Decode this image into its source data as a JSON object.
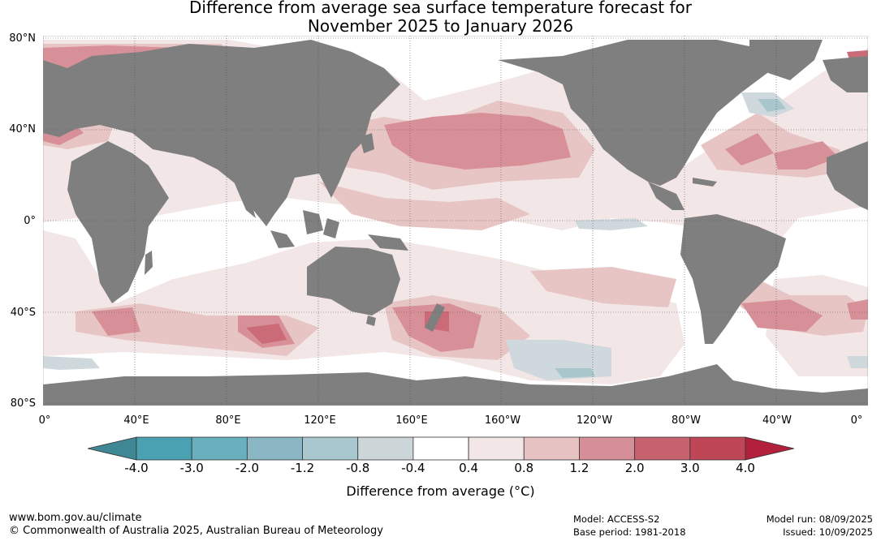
{
  "title": {
    "line1": "Difference from average sea surface temperature forecast for",
    "line2": "November 2025 to January 2026"
  },
  "map": {
    "lat_labels": [
      "80°N",
      "40°N",
      "0°",
      "40°S",
      "80°S"
    ],
    "lon_labels": [
      "0°",
      "40°E",
      "80°E",
      "120°E",
      "160°E",
      "160°W",
      "120°W",
      "80°W",
      "40°W",
      "0°"
    ],
    "colors": {
      "land": "#7f7f7f",
      "ocean_neutral": "#ffffff",
      "anom_0_4_0_8": "#f3e6e6",
      "anom_0_8_1_2": "#e8c5c5",
      "anom_1_2_2_0": "#d89098",
      "anom_2_0_3_0": "#cc6b78",
      "anom_3_0_4_0": "#c04858",
      "anom_neg_0_4_0_8": "#cfd8dc",
      "anom_neg_0_8_1_2": "#aac6cd"
    }
  },
  "colorbar": {
    "ticks": [
      "-4.0",
      "-3.0",
      "-2.0",
      "-1.2",
      "-0.8",
      "-0.4",
      "0.4",
      "0.8",
      "1.2",
      "2.0",
      "3.0",
      "4.0"
    ],
    "colors": [
      "#3f8795",
      "#4aa1b2",
      "#6aafbd",
      "#8bb6c3",
      "#a9c7ce",
      "#ccd6d9",
      "#ffffff",
      "#f3e6e6",
      "#e6c2c2",
      "#d68e97",
      "#c8626f",
      "#bf4656",
      "#b3203c"
    ],
    "label": "Difference from average (°C)"
  },
  "footer": {
    "url": "www.bom.gov.au/climate",
    "copyright": "© Commonwealth of Australia 2025, Australian Bureau of Meteorology",
    "model": "Model: ACCESS-S2",
    "base_period": "Base period: 1981-2018",
    "model_run": "Model run: 08/09/2025",
    "issued": "Issued: 10/09/2025"
  }
}
